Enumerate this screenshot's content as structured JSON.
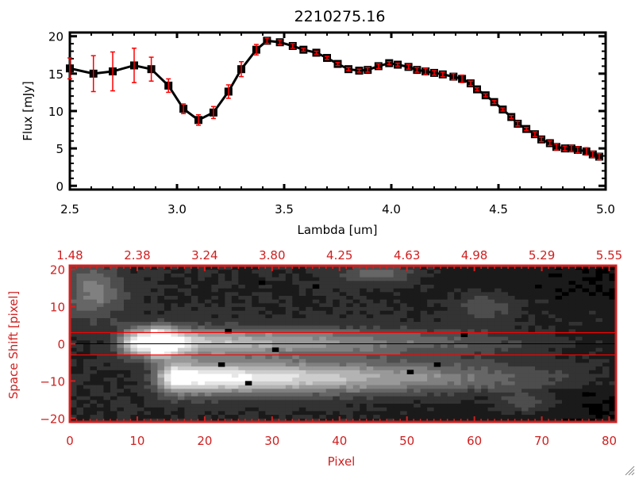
{
  "colors": {
    "axis_top": "#000000",
    "axis_bottom": "#d02020",
    "errorbar": "#ff0000",
    "line": "#000000",
    "aperture_line": "#ff0000"
  },
  "chart_data": [
    {
      "type": "line",
      "title": "2210275.16",
      "xlabel": "Lambda [um]",
      "ylabel": "Flux [mJy]",
      "xlim": [
        2.5,
        5.0
      ],
      "ylim": [
        -0.5,
        20.5
      ],
      "xticks": [
        "2.5",
        "3.0",
        "3.5",
        "4.0",
        "4.5",
        "5.0"
      ],
      "yticks": [
        "0",
        "5",
        "10",
        "15",
        "20"
      ],
      "grid": false,
      "markers": "square",
      "x": [
        2.5,
        2.61,
        2.7,
        2.8,
        2.88,
        2.96,
        3.03,
        3.1,
        3.17,
        3.24,
        3.3,
        3.37,
        3.42,
        3.48,
        3.54,
        3.59,
        3.65,
        3.7,
        3.75,
        3.8,
        3.85,
        3.89,
        3.94,
        3.99,
        4.03,
        4.08,
        4.12,
        4.16,
        4.2,
        4.24,
        4.29,
        4.33,
        4.37,
        4.4,
        4.44,
        4.48,
        4.52,
        4.56,
        4.59,
        4.63,
        4.67,
        4.7,
        4.74,
        4.77,
        4.81,
        4.84,
        4.87,
        4.91,
        4.94,
        4.97
      ],
      "y": [
        15.7,
        15.0,
        15.3,
        16.1,
        15.6,
        13.4,
        10.3,
        8.8,
        9.8,
        12.6,
        15.6,
        18.2,
        19.4,
        19.2,
        18.7,
        18.2,
        17.8,
        17.1,
        16.3,
        15.6,
        15.4,
        15.5,
        16.0,
        16.4,
        16.2,
        15.9,
        15.5,
        15.3,
        15.1,
        14.9,
        14.6,
        14.3,
        13.7,
        12.9,
        12.1,
        11.2,
        10.2,
        9.2,
        8.3,
        7.6,
        6.9,
        6.2,
        5.7,
        5.2,
        5.0,
        5.0,
        4.8,
        4.6,
        4.2,
        3.9
      ],
      "yerr": [
        1.4,
        2.4,
        2.6,
        2.3,
        1.6,
        0.9,
        0.65,
        0.7,
        0.8,
        0.9,
        1.0,
        0.7,
        0.35,
        0.3,
        0.3,
        0.2,
        0.2,
        0.2,
        0.2,
        0.2,
        0.2,
        0.3,
        0.3,
        0.2,
        0.2,
        0.3,
        0.3,
        0.4,
        0.3,
        0.3,
        0.4,
        0.5,
        0.3,
        0.2,
        0.2,
        0.2,
        0.2,
        0.2,
        0.3,
        0.2,
        0.3,
        0.3,
        0.3,
        0.4,
        0.3,
        0.4,
        0.4,
        0.5,
        0.4,
        0.4
      ]
    },
    {
      "type": "heatmap",
      "xlabel": "Pixel",
      "ylabel": "Space Shift [pixel]",
      "xlim": [
        0,
        81
      ],
      "ylim": [
        -21,
        21
      ],
      "xticks": [
        "0",
        "10",
        "20",
        "30",
        "40",
        "50",
        "60",
        "70",
        "80"
      ],
      "yticks": [
        "-20",
        "-10",
        "0",
        "10",
        "20"
      ],
      "top_xticks": [
        "1.48",
        "2.38",
        "3.24",
        "3.80",
        "4.25",
        "4.63",
        "4.98",
        "5.29",
        "5.55"
      ],
      "colormap": "grayscale",
      "aperture_lines": [
        3,
        -3
      ],
      "center_line": 0
    }
  ]
}
